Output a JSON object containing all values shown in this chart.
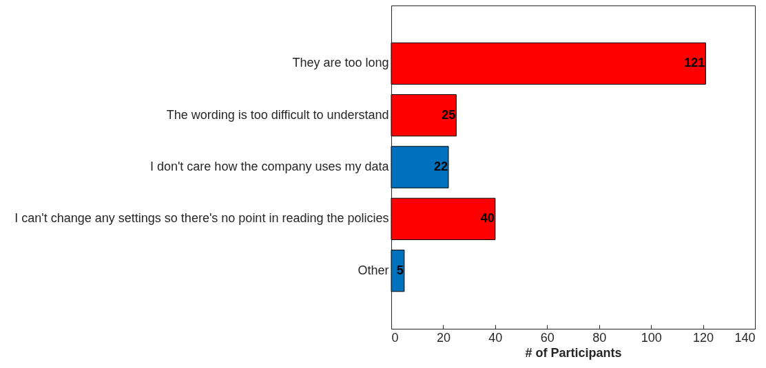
{
  "chart_data": {
    "type": "bar",
    "orientation": "horizontal",
    "xlabel": "# of Participants",
    "categories": [
      "They are too long",
      "The wording is too difficult to understand",
      "I don't care how the company uses my data",
      "I can't change any settings so there's no point in reading the policies",
      "Other"
    ],
    "values": [
      121,
      25,
      22,
      40,
      5
    ],
    "colors": [
      "#ff0000",
      "#ff0000",
      "#0072bd",
      "#ff0000",
      "#0072bd"
    ],
    "xlim": [
      0,
      140
    ],
    "xticks": [
      0,
      20,
      40,
      60,
      80,
      100,
      120,
      140
    ],
    "data_labels": true,
    "grid": false
  }
}
